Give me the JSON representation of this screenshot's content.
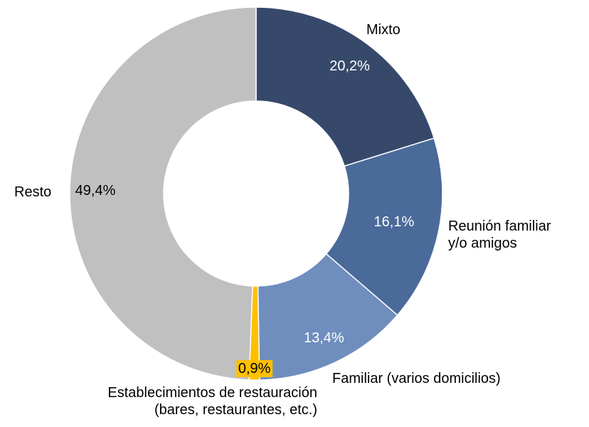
{
  "chart_data": {
    "type": "donut",
    "categories": [
      "Mixto",
      "Reunión familiar\ny/o amigos",
      "Familiar (varios domicilios)",
      "Establecimientos de restauración\n(bares, restaurantes, etc.)",
      "Resto"
    ],
    "values": [
      20.2,
      16.1,
      13.4,
      0.9,
      49.4
    ],
    "value_labels": [
      "20,2%",
      "16,1%",
      "13,4%",
      "0,9%",
      "49,4%"
    ],
    "colors": [
      "#36496b",
      "#4a6a9a",
      "#6f8ebe",
      "#ffc000",
      "#c0c0c0"
    ]
  }
}
